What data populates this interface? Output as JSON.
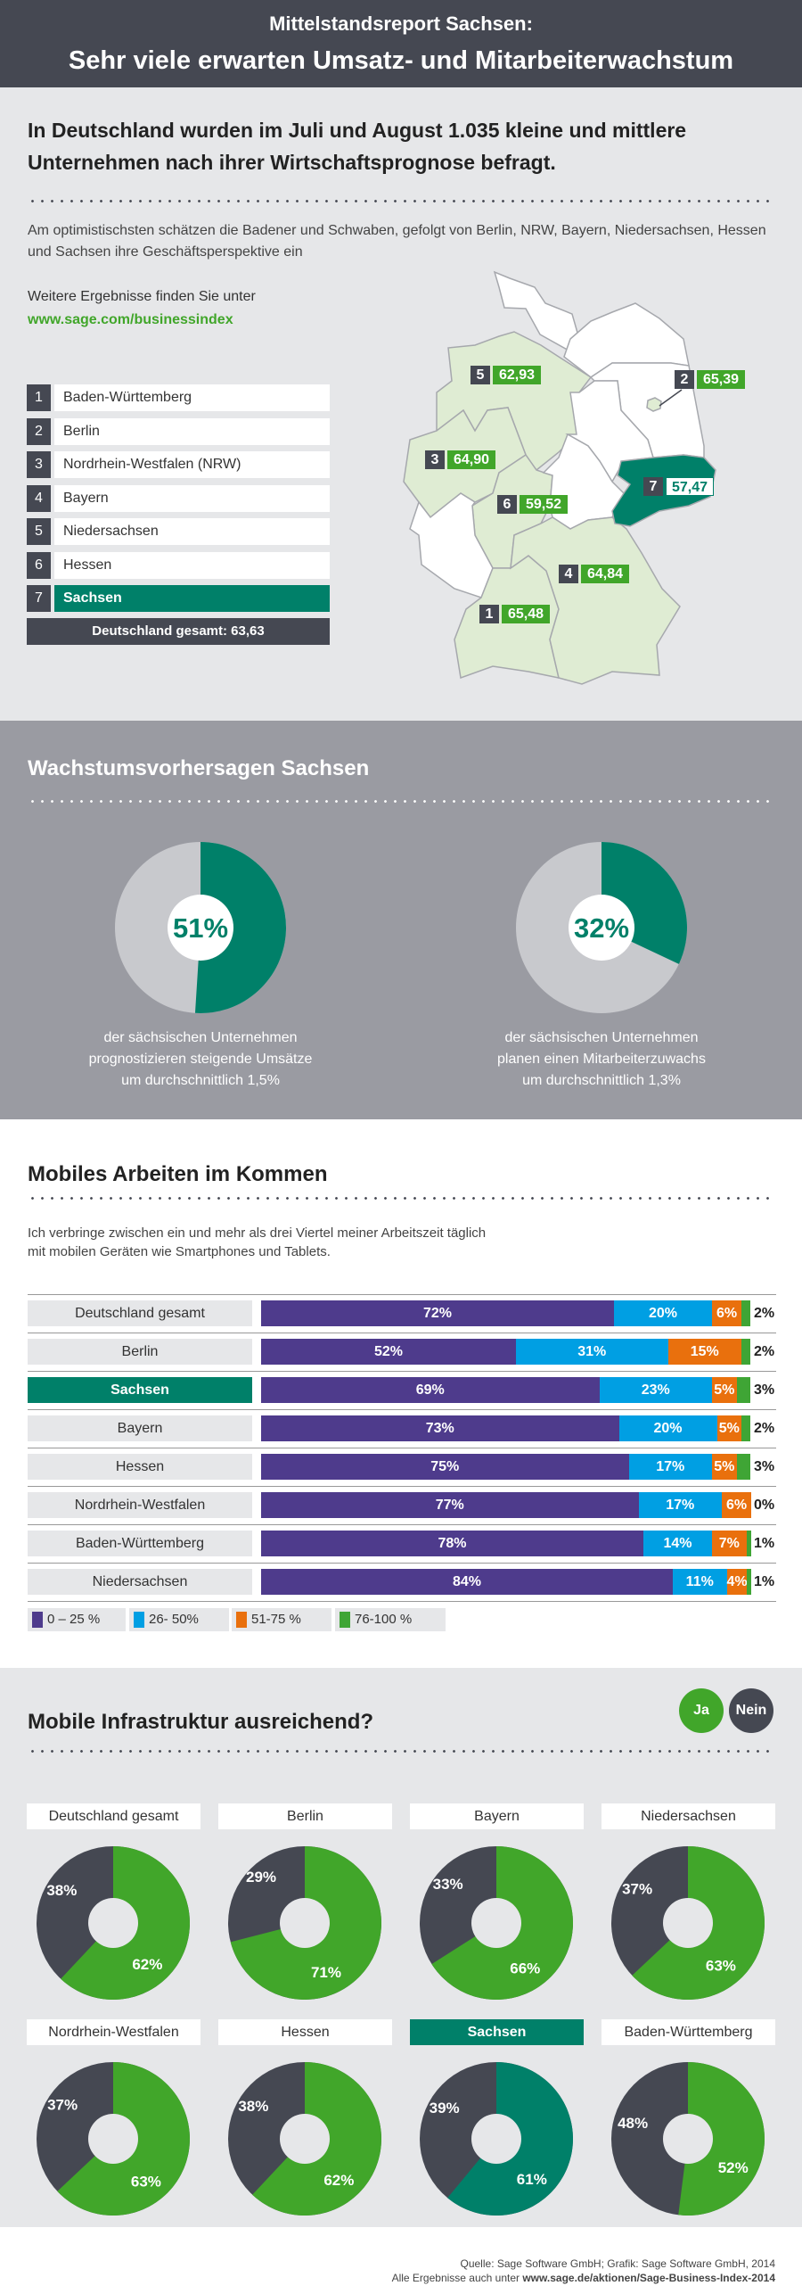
{
  "header": {
    "title_line1": "Mittelstandsreport Sachsen:",
    "title_line2": "Sehr viele erwarten Umsatz- und Mitarbeiterwachstum"
  },
  "intro": {
    "headline": "In Deutschland wurden im Juli und August 1.035 kleine und mittlere Unternehmen nach ihrer Wirtschaftsprognose befragt.",
    "subtext": "Am optimistischsten schätzen die Badener und Schwaben, gefolgt von Berlin, NRW, Bayern, Niedersachsen, Hessen und Sachsen ihre Geschäftsperspektive ein",
    "more_text": "Weitere Ergebnisse finden Sie unter",
    "more_url": "www.sage.com/businessindex"
  },
  "ranking": {
    "items": [
      {
        "rank": "1",
        "label": "Baden-Württemberg"
      },
      {
        "rank": "2",
        "label": "Berlin"
      },
      {
        "rank": "3",
        "label": "Nordrhein-Westfalen (NRW)"
      },
      {
        "rank": "4",
        "label": "Bayern"
      },
      {
        "rank": "5",
        "label": "Niedersachsen"
      },
      {
        "rank": "6",
        "label": "Hessen"
      },
      {
        "rank": "7",
        "label": "Sachsen",
        "highlight": true
      }
    ],
    "total": "Deutschland gesamt: 63,63"
  },
  "map": {
    "labels": [
      {
        "rank": "5",
        "value": "62,93"
      },
      {
        "rank": "2",
        "value": "65,39"
      },
      {
        "rank": "3",
        "value": "64,90"
      },
      {
        "rank": "7",
        "value": "57,47"
      },
      {
        "rank": "6",
        "value": "59,52"
      },
      {
        "rank": "4",
        "value": "64,84"
      },
      {
        "rank": "1",
        "value": "65,48"
      }
    ],
    "colors": {
      "ranked": "#dfecd3",
      "sachsen": "#008069",
      "other": "#ffffff",
      "border": "#a6a8ad"
    }
  },
  "growth": {
    "title": "Wachstumsvorhersagen Sachsen",
    "pies": [
      {
        "value": 51,
        "label": "51%",
        "caption": [
          "der sächsischen Unternehmen",
          "prognostizieren steigende Umsätze",
          "um durchschnittlich 1,5%"
        ]
      },
      {
        "value": 32,
        "label": "32%",
        "caption": [
          "der sächsischen Unternehmen",
          "planen einen Mitarbeiterzuwachs",
          "um durchschnittlich 1,3%"
        ]
      }
    ],
    "colors": {
      "fill": "#008069",
      "rest": "#c8c9cd"
    }
  },
  "mobile": {
    "title": "Mobiles Arbeiten im Kommen",
    "subtitle_line1": "Ich verbringe zwischen ein und mehr als drei Viertel meiner Arbeitszeit täglich",
    "subtitle_line2": "mit mobilen Geräten wie Smartphones und Tablets.",
    "chart_data": {
      "type": "bar",
      "stacked": true,
      "orientation": "horizontal",
      "categories": [
        "Deutschland gesamt",
        "Berlin",
        "Sachsen",
        "Bayern",
        "Hessen",
        "Nordrhein-Westfalen",
        "Baden-Württemberg",
        "Niedersachsen"
      ],
      "highlight": "Sachsen",
      "series": [
        {
          "name": "0 – 25 %",
          "color": "#4e3b8c",
          "values": [
            72,
            52,
            69,
            73,
            75,
            77,
            78,
            84
          ]
        },
        {
          "name": "26- 50%",
          "color": "#009fe3",
          "values": [
            20,
            31,
            23,
            20,
            17,
            17,
            14,
            11
          ]
        },
        {
          "name": "51-75 %",
          "color": "#e9700d",
          "values": [
            6,
            15,
            5,
            5,
            5,
            6,
            7,
            4
          ]
        },
        {
          "name": "76-100 %",
          "color": "#3fa535",
          "values": [
            2,
            2,
            3,
            2,
            3,
            0,
            1,
            1
          ]
        }
      ]
    }
  },
  "infra": {
    "title": "Mobile Infrastruktur ausreichend?",
    "legend": [
      {
        "label": "Ja",
        "color": "#41a62a"
      },
      {
        "label": "Nein",
        "color": "#454852"
      }
    ],
    "chart_data": {
      "type": "pie",
      "donut": true,
      "items": [
        {
          "region": "Deutschland gesamt",
          "ja": 62,
          "nein": 38
        },
        {
          "region": "Berlin",
          "ja": 71,
          "nein": 29
        },
        {
          "region": "Bayern",
          "ja": 66,
          "nein": 33
        },
        {
          "region": "Niedersachsen",
          "ja": 63,
          "nein": 37
        },
        {
          "region": "Nordrhein-Westfalen",
          "ja": 63,
          "nein": 37
        },
        {
          "region": "Hessen",
          "ja": 62,
          "nein": 38
        },
        {
          "region": "Sachsen",
          "ja": 61,
          "nein": 39,
          "highlight": true
        },
        {
          "region": "Baden-Württemberg",
          "ja": 52,
          "nein": 48
        }
      ]
    }
  },
  "footer": {
    "source": "Quelle: Sage Software GmbH; Grafik: Sage Software GmbH, 2014",
    "more_prefix": "Alle Ergebnisse auch unter ",
    "more_url": "www.sage.de/aktionen/Sage-Business-Index-2014"
  }
}
